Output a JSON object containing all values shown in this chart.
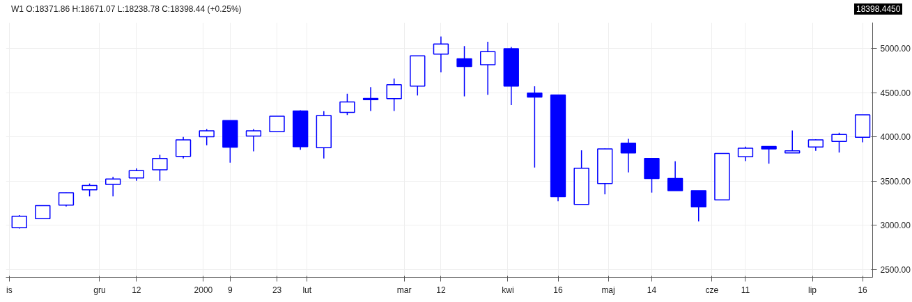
{
  "chart_data": {
    "type": "candlestick",
    "title": "W1  O:18371.86  H:18671.07  L:18238.78  C:18398.44  (+0.25%)",
    "annotations": [
      "18398.4450"
    ],
    "x": [
      "1999-11-07",
      "1999-11-14",
      "1999-11-21",
      "1999-11-28",
      "1999-12-05",
      "1999-12-12",
      "1999-12-19",
      "1999-12-26",
      "2000-01-02",
      "2000-01-09",
      "2000-01-16",
      "2000-01-23",
      "2000-01-30",
      "2000-02-06",
      "2000-02-13",
      "2000-02-20",
      "2000-02-27",
      "2000-03-05",
      "2000-03-12",
      "2000-03-19",
      "2000-03-26",
      "2000-04-02",
      "2000-04-09",
      "2000-04-16",
      "2000-04-23",
      "2000-04-30",
      "2000-05-07",
      "2000-05-14",
      "2000-05-21",
      "2000-05-28",
      "2000-06-04",
      "2000-06-11",
      "2000-06-18",
      "2000-06-25",
      "2000-07-02",
      "2000-07-09",
      "2000-07-16"
    ],
    "series": [
      {
        "color": "#0000ff",
        "ohlc": [
          [
            2974,
            3116,
            2964,
            3102
          ],
          [
            3075,
            3223,
            3070,
            3223
          ],
          [
            3228,
            3370,
            3213,
            3368
          ],
          [
            3402,
            3472,
            3327,
            3450
          ],
          [
            3462,
            3549,
            3327,
            3523
          ],
          [
            3535,
            3643,
            3503,
            3617
          ],
          [
            3627,
            3796,
            3503,
            3755
          ],
          [
            3779,
            3999,
            3755,
            3965
          ],
          [
            4000,
            4088,
            3905,
            4067
          ],
          [
            4183,
            4183,
            3709,
            3883
          ],
          [
            4009,
            4088,
            3835,
            4067
          ],
          [
            4057,
            4233,
            4057,
            4233
          ],
          [
            4292,
            4299,
            3854,
            3888
          ],
          [
            3878,
            4289,
            3755,
            4241
          ],
          [
            4275,
            4487,
            4246,
            4393
          ],
          [
            4433,
            4560,
            4292,
            4420
          ],
          [
            4432,
            4659,
            4292,
            4589
          ],
          [
            4572,
            4915,
            4466,
            4915
          ],
          [
            4935,
            5133,
            4727,
            5048
          ],
          [
            4882,
            5024,
            4456,
            4795
          ],
          [
            4814,
            5073,
            4475,
            4961
          ],
          [
            4995,
            5015,
            4359,
            4572
          ],
          [
            4495,
            4570,
            3653,
            4449
          ],
          [
            4473,
            4473,
            3271,
            3324
          ],
          [
            3237,
            3847,
            3237,
            3646
          ],
          [
            3472,
            3868,
            3351,
            3864
          ],
          [
            3929,
            3977,
            3598,
            3818
          ],
          [
            3755,
            3760,
            3370,
            3530
          ],
          [
            3530,
            3723,
            3392,
            3392
          ],
          [
            3392,
            3392,
            3044,
            3208
          ],
          [
            3288,
            3813,
            3288,
            3813
          ],
          [
            3774,
            3888,
            3726,
            3871
          ],
          [
            3890,
            3890,
            3697,
            3864
          ],
          [
            3818,
            4071,
            3818,
            3842
          ],
          [
            3885,
            3972,
            3842,
            3965
          ],
          [
            3948,
            4047,
            3822,
            4026
          ],
          [
            3994,
            4248,
            3938,
            4248
          ]
        ]
      }
    ],
    "xlim": [
      "1999-11-03",
      "2000-07-19"
    ],
    "xticks": [
      {
        "value": "1999-11-04",
        "label": "is"
      },
      {
        "value": "1999-12-01",
        "label": "gru"
      },
      {
        "value": "1999-12-12",
        "label": "12"
      },
      {
        "value": "2000-01-01",
        "label": "2000"
      },
      {
        "value": "2000-01-09",
        "label": "9"
      },
      {
        "value": "2000-01-23",
        "label": "23"
      },
      {
        "value": "2000-02-01",
        "label": "lut"
      },
      {
        "value": "2000-03-01",
        "label": "mar"
      },
      {
        "value": "2000-03-12",
        "label": "12"
      },
      {
        "value": "2000-04-01",
        "label": "kwi"
      },
      {
        "value": "2000-04-16",
        "label": "16"
      },
      {
        "value": "2000-05-01",
        "label": "maj"
      },
      {
        "value": "2000-05-14",
        "label": "14"
      },
      {
        "value": "2000-06-01",
        "label": "cze"
      },
      {
        "value": "2000-06-11",
        "label": "11"
      },
      {
        "value": "2000-07-01",
        "label": "lip"
      },
      {
        "value": "2000-07-16",
        "label": "16"
      }
    ],
    "ylim": [
      2413,
      5290
    ],
    "yticks": [
      {
        "value": 2500,
        "label": "2500.00"
      },
      {
        "value": 3000,
        "label": "3000.00"
      },
      {
        "value": 3500,
        "label": "3500.00"
      },
      {
        "value": 4000,
        "label": "4000.00"
      },
      {
        "value": 4500,
        "label": "4500.00"
      },
      {
        "value": 5000,
        "label": "5000.00"
      }
    ],
    "grid": true
  }
}
